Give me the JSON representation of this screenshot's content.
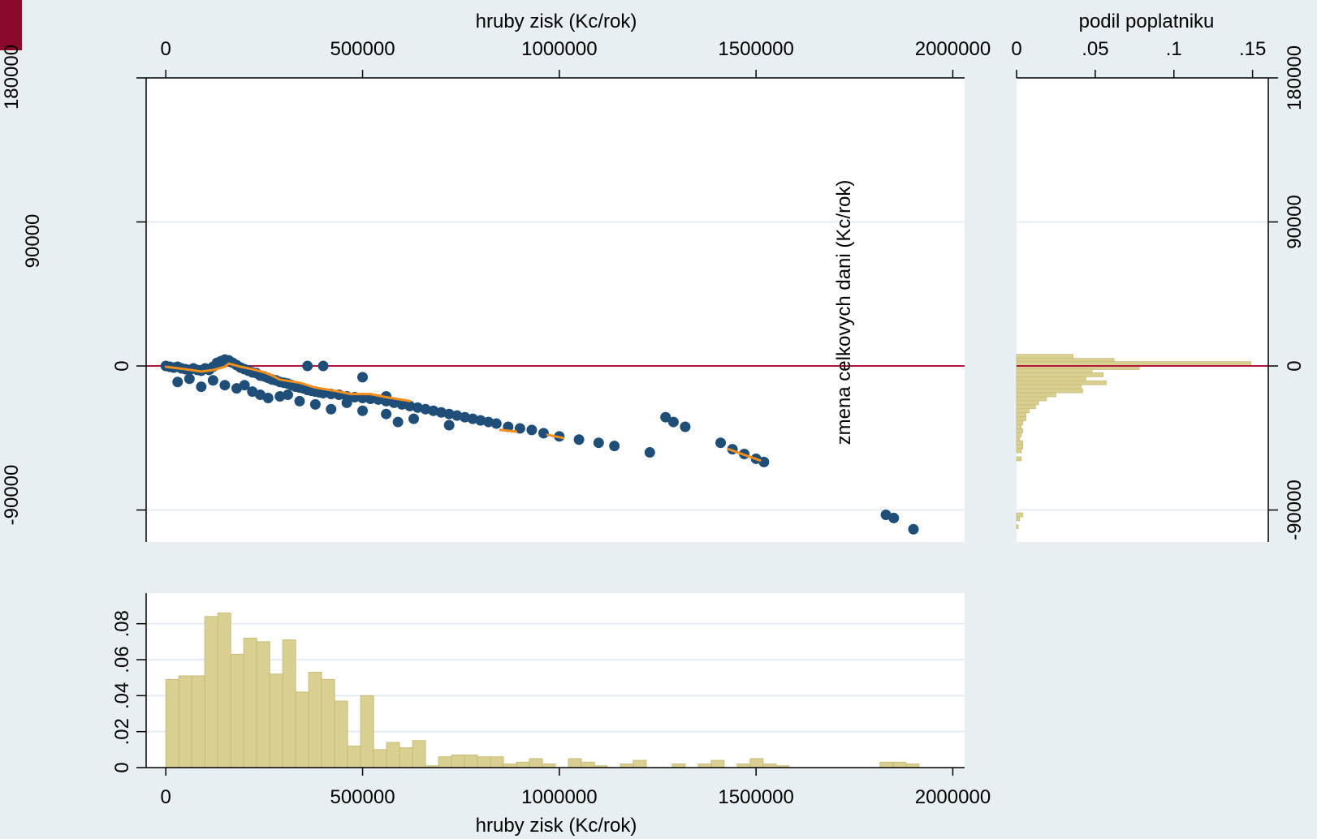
{
  "colors": {
    "background": "#e8eff2",
    "plot_bg": "#ffffff",
    "grid": "#e4edf1",
    "zero_line": "#b2163e",
    "scatter_dot": "#1f4e79",
    "smooth_line": "#f28e1c",
    "hist_fill": "#d9cf91",
    "hist_edge": "#c8bc78",
    "corner_tab": "#8b0a2a"
  },
  "chart_data": [
    {
      "id": "scatter",
      "type": "scatter",
      "title": "",
      "xlabel": "hruby zisk (Kc/rok)",
      "ylabel": "zmena celkovych dani (Kc/rok)",
      "x_axis_position": "top",
      "y_axis_position": "left",
      "xlim": [
        -50000,
        2030000
      ],
      "ylim": [
        -110000,
        180000
      ],
      "xticks": [
        0,
        500000,
        1000000,
        1500000,
        2000000
      ],
      "xticklabels": [
        "0",
        "500000",
        "1000000",
        "1500000",
        "2000000"
      ],
      "yticks": [
        -90000,
        0,
        90000,
        180000
      ],
      "yticklabels": [
        "-90000",
        "0",
        "90000",
        "180000"
      ],
      "grid": true,
      "reference_line_y": 0,
      "points": [
        [
          0,
          0
        ],
        [
          10000,
          -500
        ],
        [
          20000,
          -1000
        ],
        [
          30000,
          -500
        ],
        [
          40000,
          -1500
        ],
        [
          50000,
          -2000
        ],
        [
          60000,
          -2500
        ],
        [
          70000,
          -1500
        ],
        [
          80000,
          -2500
        ],
        [
          90000,
          -3000
        ],
        [
          100000,
          -1500
        ],
        [
          110000,
          -2500
        ],
        [
          120000,
          -500
        ],
        [
          130000,
          2000
        ],
        [
          140000,
          3000
        ],
        [
          150000,
          4000
        ],
        [
          160000,
          3500
        ],
        [
          170000,
          2000
        ],
        [
          180000,
          500
        ],
        [
          190000,
          -1000
        ],
        [
          200000,
          -2000
        ],
        [
          210000,
          -3000
        ],
        [
          220000,
          -4000
        ],
        [
          230000,
          -4500
        ],
        [
          240000,
          -6000
        ],
        [
          250000,
          -6500
        ],
        [
          260000,
          -7500
        ],
        [
          270000,
          -8500
        ],
        [
          280000,
          -9000
        ],
        [
          290000,
          -10000
        ],
        [
          300000,
          -10500
        ],
        [
          310000,
          -11000
        ],
        [
          320000,
          -12000
        ],
        [
          330000,
          -13000
        ],
        [
          340000,
          -13500
        ],
        [
          350000,
          -14000
        ],
        [
          360000,
          -15000
        ],
        [
          370000,
          -15500
        ],
        [
          380000,
          -16000
        ],
        [
          390000,
          -16500
        ],
        [
          400000,
          -17000
        ],
        [
          420000,
          -17500
        ],
        [
          440000,
          -18000
        ],
        [
          460000,
          -19000
        ],
        [
          480000,
          -19500
        ],
        [
          500000,
          -20000
        ],
        [
          520000,
          -20500
        ],
        [
          540000,
          -21000
        ],
        [
          560000,
          -22000
        ],
        [
          580000,
          -23000
        ],
        [
          600000,
          -24000
        ],
        [
          620000,
          -25000
        ],
        [
          640000,
          -26000
        ],
        [
          660000,
          -27000
        ],
        [
          680000,
          -28000
        ],
        [
          700000,
          -29000
        ],
        [
          720000,
          -30000
        ],
        [
          740000,
          -31000
        ],
        [
          760000,
          -32000
        ],
        [
          780000,
          -33000
        ],
        [
          800000,
          -34000
        ],
        [
          820000,
          -35000
        ],
        [
          840000,
          -36000
        ],
        [
          870000,
          -38000
        ],
        [
          900000,
          -39000
        ],
        [
          930000,
          -40000
        ],
        [
          960000,
          -42000
        ],
        [
          1000000,
          -44000
        ],
        [
          1050000,
          -46000
        ],
        [
          1100000,
          -48000
        ],
        [
          1140000,
          -50000
        ],
        [
          1230000,
          -54000
        ],
        [
          1270000,
          -32000
        ],
        [
          1290000,
          -35000
        ],
        [
          1320000,
          -38000
        ],
        [
          1410000,
          -48000
        ],
        [
          1440000,
          -52000
        ],
        [
          1470000,
          -55000
        ],
        [
          1500000,
          -58000
        ],
        [
          1520000,
          -60000
        ],
        [
          1830000,
          -93000
        ],
        [
          1850000,
          -95000
        ],
        [
          1900000,
          -102000
        ],
        [
          30000,
          -10000
        ],
        [
          60000,
          -8000
        ],
        [
          90000,
          -13000
        ],
        [
          120000,
          -9000
        ],
        [
          150000,
          -12000
        ],
        [
          180000,
          -14000
        ],
        [
          200000,
          -12000
        ],
        [
          220000,
          -16000
        ],
        [
          240000,
          -18000
        ],
        [
          260000,
          -20000
        ],
        [
          290000,
          -19000
        ],
        [
          310000,
          -18000
        ],
        [
          340000,
          -22000
        ],
        [
          380000,
          -24000
        ],
        [
          420000,
          -27000
        ],
        [
          460000,
          -23000
        ],
        [
          500000,
          -28000
        ],
        [
          560000,
          -30000
        ],
        [
          590000,
          -35000
        ],
        [
          630000,
          -33000
        ],
        [
          720000,
          -37000
        ],
        [
          360000,
          0
        ],
        [
          400000,
          0
        ],
        [
          500000,
          -7000
        ],
        [
          560000,
          -19000
        ]
      ],
      "smooth_segments": [
        [
          [
            0,
            -500
          ],
          [
            50000,
            -2000
          ],
          [
            90000,
            -3500
          ],
          [
            120000,
            -2500
          ],
          [
            150000,
            -500
          ],
          [
            160000,
            1500
          ],
          [
            190000,
            -500
          ],
          [
            220000,
            -2000
          ],
          [
            250000,
            -4000
          ],
          [
            270000,
            -6000
          ],
          [
            290000,
            -8500
          ],
          [
            340000,
            -10500
          ],
          [
            380000,
            -13500
          ],
          [
            430000,
            -15500
          ],
          [
            470000,
            -17500
          ],
          [
            520000,
            -17500
          ],
          [
            560000,
            -19500
          ],
          [
            610000,
            -21500
          ],
          [
            620000,
            -22000
          ]
        ],
        [
          [
            850000,
            -40000
          ],
          [
            890000,
            -41000
          ]
        ],
        [
          [
            970000,
            -43000
          ],
          [
            1010000,
            -45000
          ]
        ],
        [
          [
            1430000,
            -52000
          ],
          [
            1510000,
            -59000
          ]
        ]
      ]
    },
    {
      "id": "right-histogram",
      "type": "bar",
      "orientation": "horizontal",
      "title": "",
      "xlabel": "podil poplatniku",
      "x_axis_position": "top",
      "y_axis_position": "right",
      "xlim": [
        0,
        0.16
      ],
      "ylim": [
        -110000,
        180000
      ],
      "xticks": [
        0,
        0.05,
        0.1,
        0.15
      ],
      "xticklabels": [
        "0",
        ".05",
        ".1",
        ".15"
      ],
      "yticks": [
        -90000,
        0,
        90000,
        180000
      ],
      "yticklabels": [
        "-90000",
        "0",
        "90000",
        "180000"
      ],
      "grid": true,
      "reference_line_y": 0,
      "bins": [
        {
          "y": 6000,
          "value": 0.036
        },
        {
          "y": 3500,
          "value": 0.062
        },
        {
          "y": 1500,
          "value": 0.149
        },
        {
          "y": -1000,
          "value": 0.078
        },
        {
          "y": -3000,
          "value": 0.048
        },
        {
          "y": -5500,
          "value": 0.055
        },
        {
          "y": -8000,
          "value": 0.044
        },
        {
          "y": -10500,
          "value": 0.057
        },
        {
          "y": -13000,
          "value": 0.041
        },
        {
          "y": -15500,
          "value": 0.042
        },
        {
          "y": -18000,
          "value": 0.025
        },
        {
          "y": -20500,
          "value": 0.019
        },
        {
          "y": -23000,
          "value": 0.014
        },
        {
          "y": -25500,
          "value": 0.012
        },
        {
          "y": -28000,
          "value": 0.008
        },
        {
          "y": -30500,
          "value": 0.006
        },
        {
          "y": -33000,
          "value": 0.006
        },
        {
          "y": -35500,
          "value": 0.004
        },
        {
          "y": -38000,
          "value": 0.003
        },
        {
          "y": -40500,
          "value": 0.004
        },
        {
          "y": -43000,
          "value": 0.003
        },
        {
          "y": -45500,
          "value": 0.002
        },
        {
          "y": -48000,
          "value": 0.004
        },
        {
          "y": -50500,
          "value": 0.004
        },
        {
          "y": -53000,
          "value": 0.003
        },
        {
          "y": -58000,
          "value": 0.003
        },
        {
          "y": -93000,
          "value": 0.004
        },
        {
          "y": -95500,
          "value": 0.002
        },
        {
          "y": -100500,
          "value": 0.001
        }
      ],
      "bin_height": 2500
    },
    {
      "id": "bottom-histogram",
      "type": "bar",
      "title": "",
      "xlabel": "hruby zisk (Kc/rok)",
      "ylabel": "",
      "x_axis_position": "bottom",
      "y_axis_position": "left",
      "xlim": [
        -50000,
        2030000
      ],
      "ylim": [
        0,
        0.097
      ],
      "xticks": [
        0,
        500000,
        1000000,
        1500000,
        2000000
      ],
      "xticklabels": [
        "0",
        "500000",
        "1000000",
        "1500000",
        "2000000"
      ],
      "yticks": [
        0,
        0.02,
        0.04,
        0.06,
        0.08
      ],
      "yticklabels": [
        "0",
        ".02",
        ".04",
        ".06",
        ".08"
      ],
      "grid": true,
      "bin_width": 33000,
      "bins": [
        {
          "x": 0,
          "value": 0.049
        },
        {
          "x": 33000,
          "value": 0.051
        },
        {
          "x": 66000,
          "value": 0.051
        },
        {
          "x": 99000,
          "value": 0.084
        },
        {
          "x": 132000,
          "value": 0.086
        },
        {
          "x": 165000,
          "value": 0.063
        },
        {
          "x": 198000,
          "value": 0.072
        },
        {
          "x": 231000,
          "value": 0.07
        },
        {
          "x": 264000,
          "value": 0.052
        },
        {
          "x": 297000,
          "value": 0.071
        },
        {
          "x": 330000,
          "value": 0.042
        },
        {
          "x": 363000,
          "value": 0.053
        },
        {
          "x": 396000,
          "value": 0.049
        },
        {
          "x": 429000,
          "value": 0.037
        },
        {
          "x": 462000,
          "value": 0.012
        },
        {
          "x": 495000,
          "value": 0.04
        },
        {
          "x": 528000,
          "value": 0.01
        },
        {
          "x": 561000,
          "value": 0.014
        },
        {
          "x": 594000,
          "value": 0.011
        },
        {
          "x": 627000,
          "value": 0.015
        },
        {
          "x": 660000,
          "value": 0.001
        },
        {
          "x": 693000,
          "value": 0.006
        },
        {
          "x": 726000,
          "value": 0.007
        },
        {
          "x": 759000,
          "value": 0.007
        },
        {
          "x": 792000,
          "value": 0.006
        },
        {
          "x": 825000,
          "value": 0.006
        },
        {
          "x": 858000,
          "value": 0.002
        },
        {
          "x": 891000,
          "value": 0.003
        },
        {
          "x": 924000,
          "value": 0.005
        },
        {
          "x": 957000,
          "value": 0.002
        },
        {
          "x": 1023000,
          "value": 0.005
        },
        {
          "x": 1056000,
          "value": 0.003
        },
        {
          "x": 1089000,
          "value": 0.001
        },
        {
          "x": 1155000,
          "value": 0.002
        },
        {
          "x": 1188000,
          "value": 0.004
        },
        {
          "x": 1287000,
          "value": 0.002
        },
        {
          "x": 1353000,
          "value": 0.002
        },
        {
          "x": 1386000,
          "value": 0.004
        },
        {
          "x": 1452000,
          "value": 0.002
        },
        {
          "x": 1485000,
          "value": 0.005
        },
        {
          "x": 1518000,
          "value": 0.002
        },
        {
          "x": 1551000,
          "value": 0.001
        },
        {
          "x": 1815000,
          "value": 0.003
        },
        {
          "x": 1848000,
          "value": 0.003
        },
        {
          "x": 1881000,
          "value": 0.002
        }
      ]
    }
  ],
  "clipped_left_labels": {
    "top": "180000",
    "middle": "90000",
    "bottom": "-90000"
  }
}
